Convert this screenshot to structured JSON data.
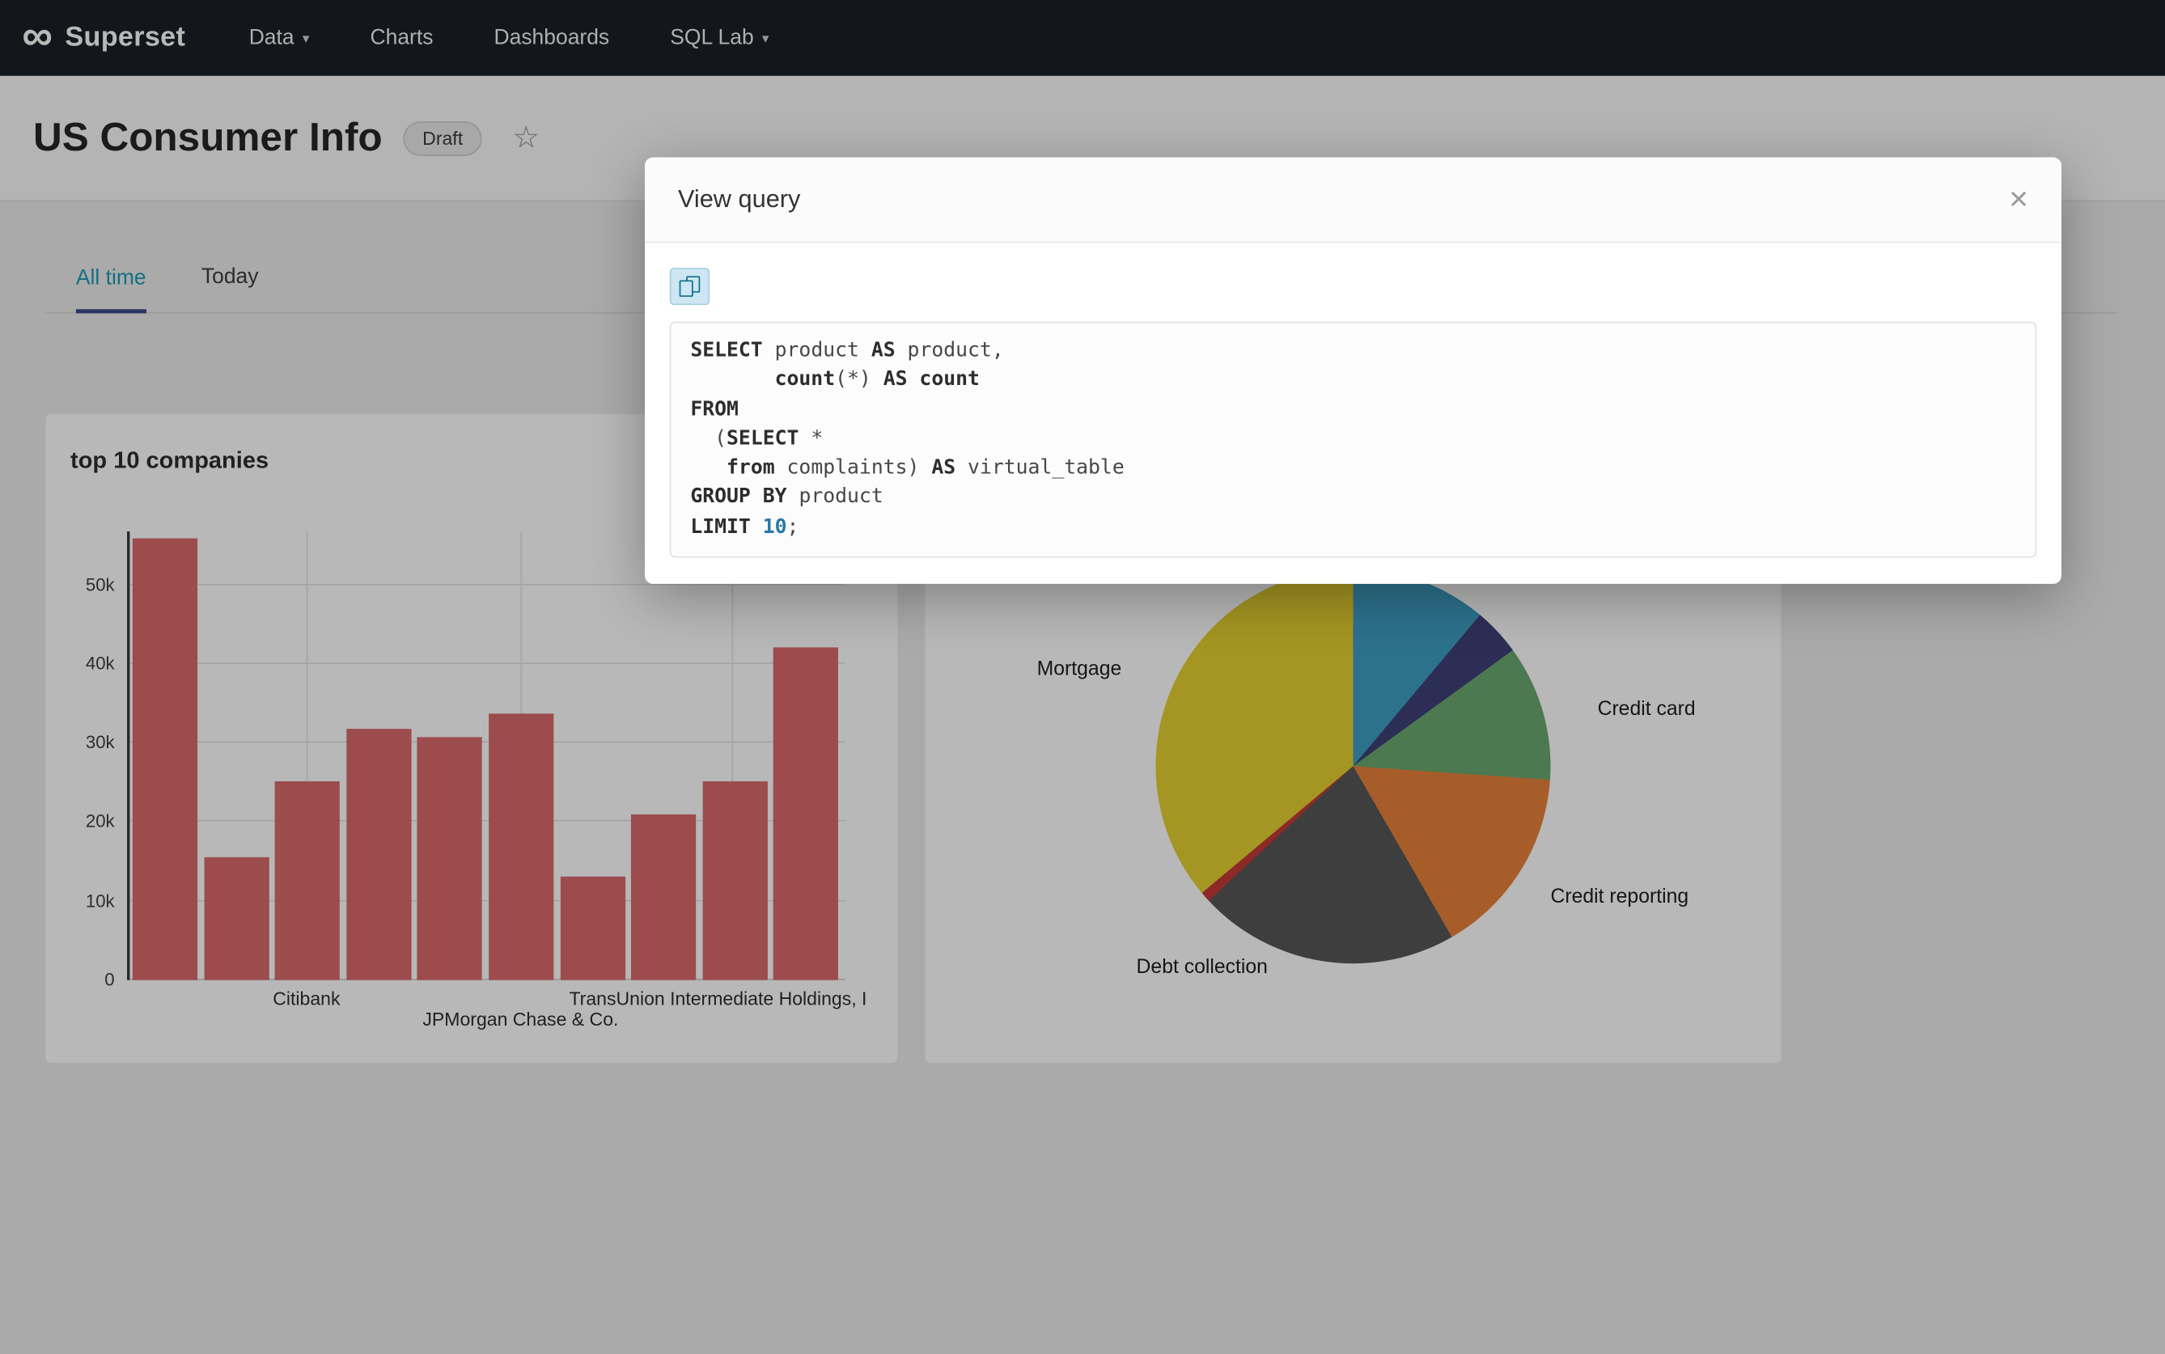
{
  "nav": {
    "logo_glyph": "∞",
    "brand": "Superset",
    "caret_glyph": "▾",
    "items": [
      {
        "label": "Data",
        "caret": true
      },
      {
        "label": "Charts",
        "caret": false
      },
      {
        "label": "Dashboards",
        "caret": false
      },
      {
        "label": "SQL Lab",
        "caret": true
      }
    ]
  },
  "header": {
    "title": "US Consumer Info",
    "badge": "Draft",
    "star_glyph": "☆"
  },
  "tabs": [
    {
      "label": "All time",
      "active": true
    },
    {
      "label": "Today",
      "active": false
    }
  ],
  "modal": {
    "title": "View query",
    "close": "×",
    "copy_icon": "copy-to-clipboard-icon",
    "sql_lines": [
      "SELECT product AS product,",
      "       count(*) AS count",
      "FROM",
      "  (SELECT *",
      "   from complaints) AS virtual_table",
      "GROUP BY product",
      "LIMIT 10;"
    ]
  },
  "charts": {
    "bar": {
      "type": "bar",
      "title": "top 10 companies",
      "bar_color": "#d96a6b",
      "values": [
        55800,
        15600,
        25200,
        31800,
        30800,
        33700,
        13100,
        21000,
        25200,
        42000
      ],
      "ylim": [
        0,
        56000
      ],
      "y_ticks": [
        "0",
        "10k",
        "20k",
        "30k",
        "40k",
        "50k"
      ],
      "x_labels": [
        {
          "text": "Citibank"
        },
        {
          "text": "JPMorgan Chase & Co."
        },
        {
          "text": "TransUnion Intermediate Holdings, I"
        }
      ]
    },
    "pie": {
      "type": "pie",
      "slices": [
        {
          "label": "",
          "color": "#3f9fc4",
          "start": 0,
          "end": 40
        },
        {
          "label": "",
          "color": "#3f4078",
          "start": 40,
          "end": 54
        },
        {
          "label": "Credit card",
          "color": "#6aa86e",
          "start": 54,
          "end": 94
        },
        {
          "label": "Credit reporting",
          "color": "#e8823a",
          "start": 94,
          "end": 150
        },
        {
          "label": "Debt collection",
          "color": "#575757",
          "start": 150,
          "end": 227
        },
        {
          "label": "",
          "color": "#c43a38",
          "start": 227,
          "end": 230
        },
        {
          "label": "Mortgage",
          "color": "#e5cf30",
          "start": 230,
          "end": 360
        }
      ],
      "labels": [
        {
          "text": "Mortgage"
        },
        {
          "text": "Credit card"
        },
        {
          "text": "Credit reporting"
        },
        {
          "text": "Debt collection"
        }
      ]
    }
  }
}
